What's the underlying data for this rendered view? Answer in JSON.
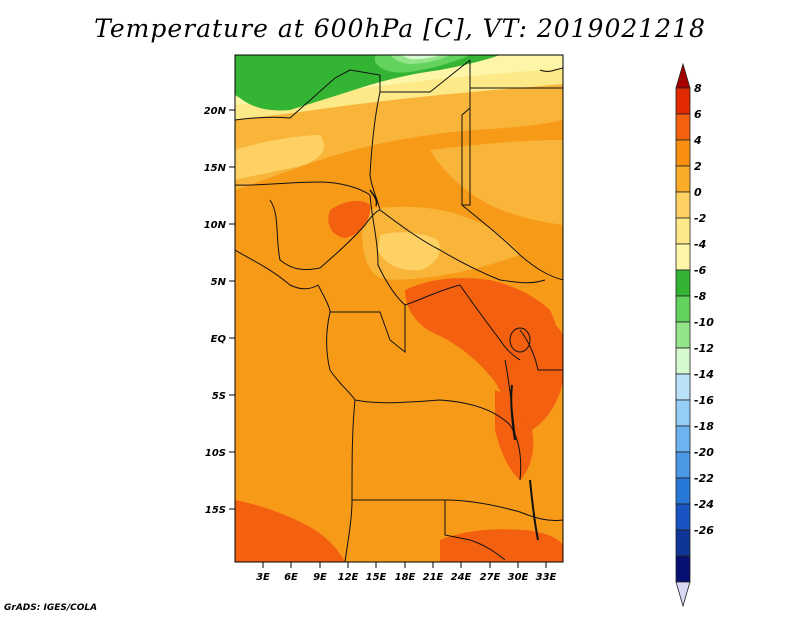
{
  "title": "Temperature at 600hPa [C], VT: 2019021218",
  "credit": "GrADS: IGES/COLA",
  "lat_ticks": [
    "20N",
    "15N",
    "10N",
    "5N",
    "EQ",
    "5S",
    "10S",
    "15S"
  ],
  "lon_ticks": [
    "3E",
    "6E",
    "9E",
    "12E",
    "15E",
    "18E",
    "21E",
    "24E",
    "27E",
    "30E",
    "33E"
  ],
  "colorbar": {
    "labels": [
      "8",
      "6",
      "4",
      "2",
      "0",
      "-2",
      "-4",
      "-6",
      "-8",
      "-10",
      "-12",
      "-14",
      "-16",
      "-18",
      "-20",
      "-22",
      "-24",
      "-26"
    ],
    "colors": [
      "#a50000",
      "#e12a00",
      "#f36010",
      "#f88f10",
      "#f9ac29",
      "#fdd163",
      "#fde987",
      "#fdf6a9",
      "#34b433",
      "#64d35d",
      "#94e58a",
      "#d7f9d0",
      "#b9e2f9",
      "#95cdf7",
      "#6db3f0",
      "#4b97e6",
      "#2777d6",
      "#1754c1",
      "#0f3596",
      "#070f70",
      "#d9d9f6"
    ]
  }
}
